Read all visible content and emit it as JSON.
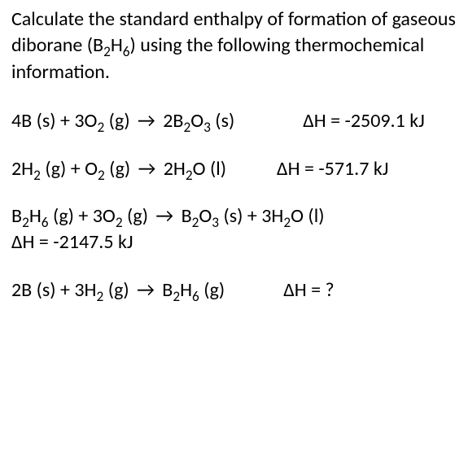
{
  "intro": {
    "part1": "Calculate the standard enthalpy of formation of gaseous diborane (B",
    "sub1": "2",
    "part2": "H",
    "sub2": "6",
    "part3": ") using the following thermochemical information."
  },
  "eq1": {
    "c1": "4B (s)  +  3O",
    "s1": "2",
    "c2": " (g)  ",
    "arrow": "→",
    "c3": "  2B",
    "s3": "2",
    "c4": "O",
    "s4": "3",
    "c5": " (s)",
    "dh_label": "ΔH = ",
    "dh_value": "-2509.1 kJ"
  },
  "eq2": {
    "c1": "2H",
    "s1": "2",
    "c2": " (g)  +  O",
    "s2": "2",
    "c3": " (g)  ",
    "arrow": "→",
    "c4": "  2H",
    "s4": "2",
    "c5": "O (l)",
    "dh_label": "ΔH = ",
    "dh_value": "-571.7 kJ"
  },
  "eq3": {
    "c1": "B",
    "s1": "2",
    "c2": "H",
    "s2": "6",
    "c3": " (g)  +  3O",
    "s3": "2",
    "c4": " (g)  ",
    "arrow": "→",
    "c5": "  B",
    "s5": "2",
    "c6": "O",
    "s6": "3",
    "c7": " (s)  +  3H",
    "s7": "2",
    "c8": "O (l)",
    "dh_full": "ΔH = -2147.5 kJ"
  },
  "eq4": {
    "c1": "2B (s)  +  3H",
    "s1": "2",
    "c2": " (g)  ",
    "arrow": "→",
    "c3": "  B",
    "s3": "2",
    "c4": "H",
    "s4": "6",
    "c5": " (g)",
    "dh_label": "ΔH = ?"
  },
  "spacing": {
    "gap_eq1": "84px",
    "gap_eq2": "62px",
    "gap_eq3": "44px",
    "gap_eq4": "72px"
  }
}
